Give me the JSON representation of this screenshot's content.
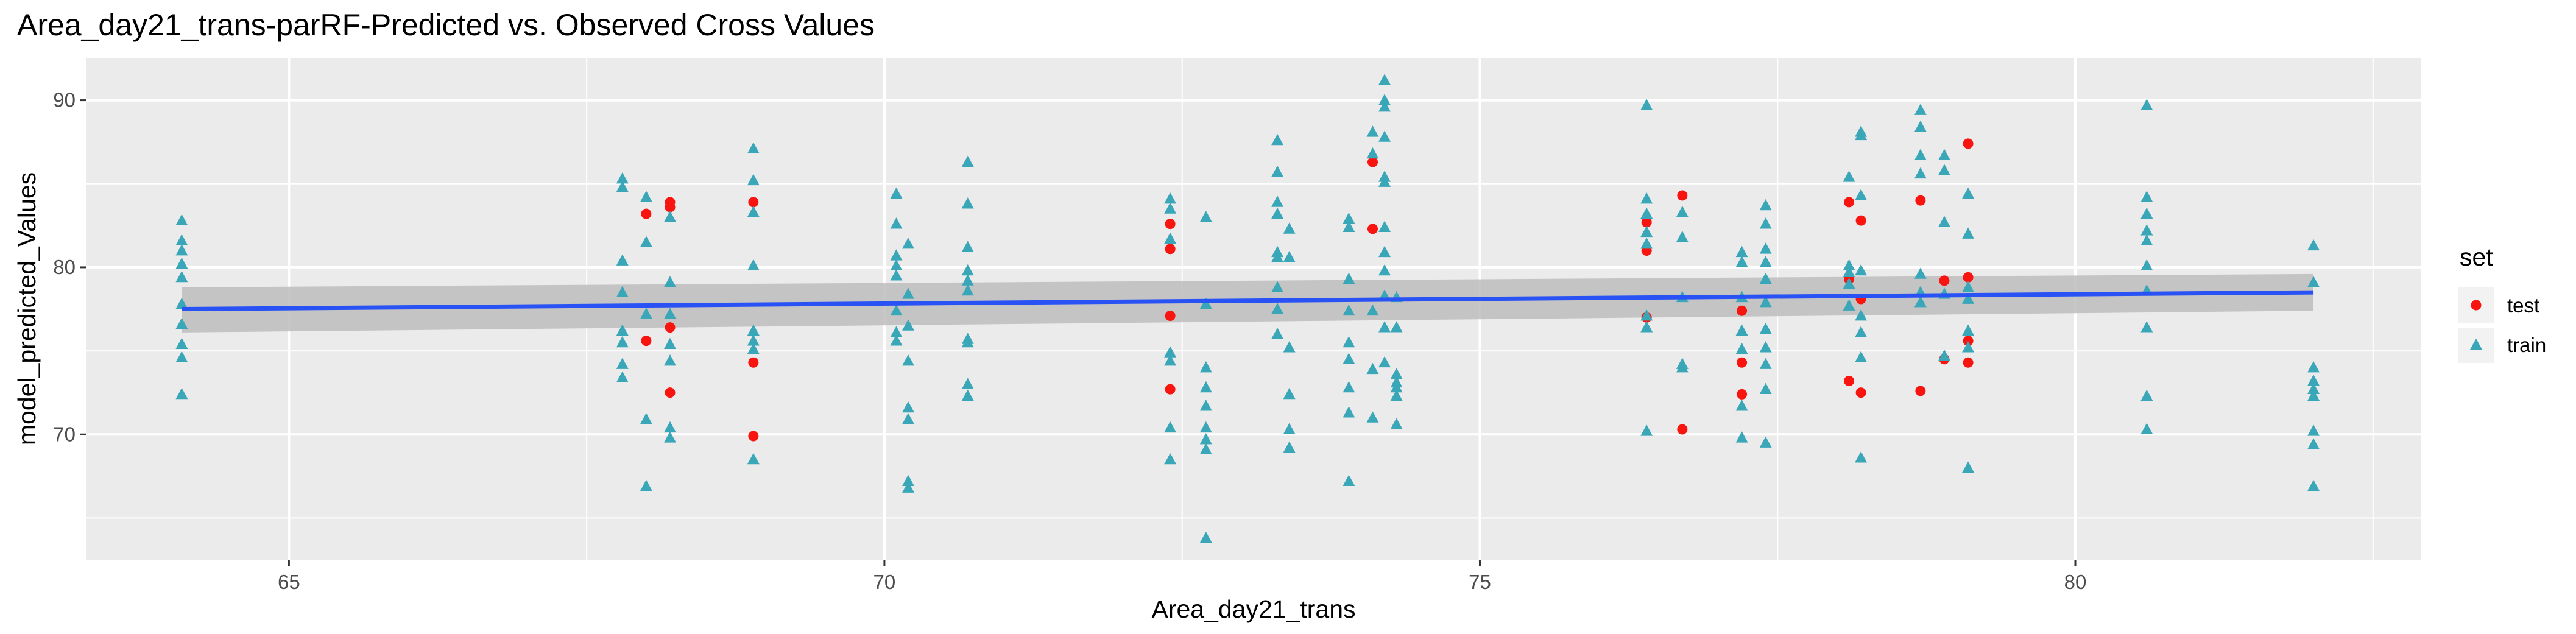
{
  "chart_data": {
    "type": "scatter",
    "title": "Area_day21_trans-parRF-Predicted vs. Observed Cross Values",
    "xlabel": "Area_day21_trans",
    "ylabel": "model_predicted_Values",
    "xlim": [
      63.3,
      82.9
    ],
    "ylim": [
      62.5,
      92.5
    ],
    "x_ticks": [
      65,
      70,
      75,
      80
    ],
    "y_ticks": [
      70,
      80,
      90
    ],
    "grid": true,
    "legend": {
      "title": "set",
      "placement": "right",
      "entries": [
        "test",
        "train"
      ]
    },
    "colors": {
      "test": "#F8150F",
      "train": "#3AA7B9",
      "fit_line": "#2952F5",
      "band": "#BDBDBD",
      "panel": "#EBEBEB"
    },
    "series": [
      {
        "name": "test",
        "marker": "circle",
        "points": [
          [
            68.0,
            75.6
          ],
          [
            68.0,
            83.2
          ],
          [
            68.2,
            76.4
          ],
          [
            68.2,
            83.6
          ],
          [
            68.2,
            83.9
          ],
          [
            68.2,
            72.5
          ],
          [
            68.9,
            83.9
          ],
          [
            68.9,
            74.3
          ],
          [
            68.9,
            69.9
          ],
          [
            72.4,
            82.6
          ],
          [
            72.4,
            81.1
          ],
          [
            72.4,
            77.1
          ],
          [
            72.4,
            72.7
          ],
          [
            74.1,
            86.3
          ],
          [
            74.1,
            82.3
          ],
          [
            76.4,
            82.7
          ],
          [
            76.4,
            81.0
          ],
          [
            76.4,
            77.0
          ],
          [
            76.7,
            84.3
          ],
          [
            76.7,
            70.3
          ],
          [
            77.2,
            77.4
          ],
          [
            77.2,
            74.3
          ],
          [
            77.2,
            72.4
          ],
          [
            78.1,
            83.9
          ],
          [
            78.2,
            82.8
          ],
          [
            78.1,
            79.3
          ],
          [
            78.2,
            78.1
          ],
          [
            78.1,
            73.2
          ],
          [
            78.2,
            72.5
          ],
          [
            78.7,
            84.0
          ],
          [
            78.7,
            72.6
          ],
          [
            78.9,
            79.2
          ],
          [
            78.9,
            74.5
          ],
          [
            79.1,
            87.4
          ],
          [
            79.1,
            79.4
          ],
          [
            79.1,
            75.6
          ],
          [
            79.1,
            74.3
          ]
        ]
      },
      {
        "name": "train",
        "marker": "triangle",
        "points": [
          [
            64.1,
            82.8
          ],
          [
            64.1,
            81.6
          ],
          [
            64.1,
            81.0
          ],
          [
            64.1,
            80.2
          ],
          [
            64.1,
            79.4
          ],
          [
            64.1,
            77.8
          ],
          [
            64.1,
            76.6
          ],
          [
            64.1,
            75.4
          ],
          [
            64.1,
            74.6
          ],
          [
            64.1,
            72.4
          ],
          [
            67.8,
            85.3
          ],
          [
            67.8,
            84.8
          ],
          [
            67.8,
            80.4
          ],
          [
            67.8,
            78.5
          ],
          [
            67.8,
            76.2
          ],
          [
            67.8,
            75.5
          ],
          [
            67.8,
            74.2
          ],
          [
            67.8,
            73.4
          ],
          [
            68.0,
            84.2
          ],
          [
            68.0,
            81.5
          ],
          [
            68.0,
            77.2
          ],
          [
            68.0,
            70.9
          ],
          [
            68.0,
            66.9
          ],
          [
            68.2,
            83.0
          ],
          [
            68.2,
            79.1
          ],
          [
            68.2,
            77.2
          ],
          [
            68.2,
            75.4
          ],
          [
            68.2,
            74.4
          ],
          [
            68.2,
            70.4
          ],
          [
            68.2,
            69.8
          ],
          [
            68.9,
            87.1
          ],
          [
            68.9,
            85.2
          ],
          [
            68.9,
            83.3
          ],
          [
            68.9,
            80.1
          ],
          [
            68.9,
            76.2
          ],
          [
            68.9,
            75.6
          ],
          [
            68.9,
            75.1
          ],
          [
            68.9,
            68.5
          ],
          [
            70.1,
            84.4
          ],
          [
            70.1,
            82.6
          ],
          [
            70.1,
            80.7
          ],
          [
            70.1,
            80.1
          ],
          [
            70.1,
            79.5
          ],
          [
            70.1,
            77.4
          ],
          [
            70.1,
            76.1
          ],
          [
            70.1,
            75.6
          ],
          [
            70.2,
            81.4
          ],
          [
            70.2,
            78.4
          ],
          [
            70.2,
            76.5
          ],
          [
            70.2,
            74.4
          ],
          [
            70.2,
            71.6
          ],
          [
            70.2,
            70.9
          ],
          [
            70.2,
            67.2
          ],
          [
            70.2,
            66.8
          ],
          [
            70.7,
            86.3
          ],
          [
            70.7,
            83.8
          ],
          [
            70.7,
            81.2
          ],
          [
            70.7,
            79.8
          ],
          [
            70.7,
            79.2
          ],
          [
            70.7,
            78.6
          ],
          [
            70.7,
            75.7
          ],
          [
            70.7,
            75.5
          ],
          [
            70.7,
            73.0
          ],
          [
            70.7,
            72.3
          ],
          [
            72.4,
            84.1
          ],
          [
            72.4,
            83.5
          ],
          [
            72.4,
            81.7
          ],
          [
            72.4,
            74.9
          ],
          [
            72.4,
            74.4
          ],
          [
            72.4,
            70.4
          ],
          [
            72.4,
            68.5
          ],
          [
            72.7,
            83.0
          ],
          [
            72.7,
            77.8
          ],
          [
            72.7,
            74.0
          ],
          [
            72.7,
            72.8
          ],
          [
            72.7,
            71.7
          ],
          [
            72.7,
            70.4
          ],
          [
            72.7,
            69.7
          ],
          [
            72.7,
            69.1
          ],
          [
            72.7,
            63.8
          ],
          [
            73.3,
            87.6
          ],
          [
            73.3,
            85.7
          ],
          [
            73.3,
            83.9
          ],
          [
            73.3,
            83.2
          ],
          [
            73.3,
            80.9
          ],
          [
            73.3,
            80.6
          ],
          [
            73.3,
            78.8
          ],
          [
            73.3,
            77.5
          ],
          [
            73.3,
            76.0
          ],
          [
            73.4,
            82.3
          ],
          [
            73.4,
            80.6
          ],
          [
            73.4,
            75.2
          ],
          [
            73.4,
            72.4
          ],
          [
            73.4,
            70.3
          ],
          [
            73.4,
            69.2
          ],
          [
            73.9,
            82.9
          ],
          [
            73.9,
            82.4
          ],
          [
            73.9,
            79.3
          ],
          [
            73.9,
            77.4
          ],
          [
            73.9,
            75.5
          ],
          [
            73.9,
            74.5
          ],
          [
            73.9,
            72.8
          ],
          [
            73.9,
            71.3
          ],
          [
            73.9,
            67.2
          ],
          [
            74.1,
            88.1
          ],
          [
            74.1,
            86.8
          ],
          [
            74.1,
            77.4
          ],
          [
            74.1,
            73.9
          ],
          [
            74.1,
            71.0
          ],
          [
            74.2,
            91.2
          ],
          [
            74.2,
            90.0
          ],
          [
            74.2,
            89.6
          ],
          [
            74.2,
            87.8
          ],
          [
            74.2,
            85.4
          ],
          [
            74.2,
            85.1
          ],
          [
            74.2,
            82.4
          ],
          [
            74.2,
            80.9
          ],
          [
            74.2,
            79.8
          ],
          [
            74.2,
            78.3
          ],
          [
            74.2,
            76.4
          ],
          [
            74.2,
            74.3
          ],
          [
            74.3,
            78.2
          ],
          [
            74.3,
            76.4
          ],
          [
            74.3,
            73.6
          ],
          [
            74.3,
            73.1
          ],
          [
            74.3,
            72.8
          ],
          [
            74.3,
            72.3
          ],
          [
            74.3,
            70.6
          ],
          [
            76.4,
            89.7
          ],
          [
            76.4,
            84.1
          ],
          [
            76.4,
            83.2
          ],
          [
            76.4,
            82.1
          ],
          [
            76.4,
            81.4
          ],
          [
            76.4,
            77.1
          ],
          [
            76.4,
            76.4
          ],
          [
            76.4,
            70.2
          ],
          [
            76.7,
            83.3
          ],
          [
            76.7,
            81.8
          ],
          [
            76.7,
            78.2
          ],
          [
            76.7,
            74.2
          ],
          [
            76.7,
            74.0
          ],
          [
            77.2,
            80.9
          ],
          [
            77.2,
            80.3
          ],
          [
            77.2,
            78.2
          ],
          [
            77.2,
            76.2
          ],
          [
            77.2,
            75.1
          ],
          [
            77.2,
            71.7
          ],
          [
            77.2,
            69.8
          ],
          [
            77.4,
            83.7
          ],
          [
            77.4,
            82.6
          ],
          [
            77.4,
            81.1
          ],
          [
            77.4,
            80.3
          ],
          [
            77.4,
            79.3
          ],
          [
            77.4,
            77.9
          ],
          [
            77.4,
            76.3
          ],
          [
            77.4,
            75.2
          ],
          [
            77.4,
            74.2
          ],
          [
            77.4,
            72.7
          ],
          [
            77.4,
            69.5
          ],
          [
            78.1,
            85.4
          ],
          [
            78.1,
            80.1
          ],
          [
            78.1,
            79.7
          ],
          [
            78.1,
            79.0
          ],
          [
            78.1,
            77.7
          ],
          [
            78.2,
            88.1
          ],
          [
            78.2,
            87.9
          ],
          [
            78.2,
            84.3
          ],
          [
            78.2,
            79.8
          ],
          [
            78.2,
            77.1
          ],
          [
            78.2,
            76.1
          ],
          [
            78.2,
            74.6
          ],
          [
            78.2,
            68.6
          ],
          [
            78.7,
            89.4
          ],
          [
            78.7,
            88.4
          ],
          [
            78.7,
            86.7
          ],
          [
            78.7,
            85.6
          ],
          [
            78.7,
            79.6
          ],
          [
            78.7,
            78.5
          ],
          [
            78.7,
            77.9
          ],
          [
            78.9,
            86.7
          ],
          [
            78.9,
            85.8
          ],
          [
            78.9,
            82.7
          ],
          [
            78.9,
            78.4
          ],
          [
            78.9,
            74.7
          ],
          [
            79.1,
            84.4
          ],
          [
            79.1,
            82.0
          ],
          [
            79.1,
            78.8
          ],
          [
            79.1,
            78.1
          ],
          [
            79.1,
            76.2
          ],
          [
            79.1,
            75.2
          ],
          [
            79.1,
            68.0
          ],
          [
            80.6,
            89.7
          ],
          [
            80.6,
            84.2
          ],
          [
            80.6,
            83.2
          ],
          [
            80.6,
            82.2
          ],
          [
            80.6,
            81.6
          ],
          [
            80.6,
            80.1
          ],
          [
            80.6,
            78.6
          ],
          [
            80.6,
            76.4
          ],
          [
            80.6,
            72.3
          ],
          [
            80.6,
            70.3
          ],
          [
            82.0,
            81.3
          ],
          [
            82.0,
            79.1
          ],
          [
            82.0,
            74.0
          ],
          [
            82.0,
            73.2
          ],
          [
            82.0,
            72.7
          ],
          [
            82.0,
            72.3
          ],
          [
            82.0,
            70.2
          ],
          [
            82.0,
            69.4
          ],
          [
            82.0,
            66.9
          ]
        ]
      }
    ],
    "fit": {
      "x": [
        64.1,
        82.0
      ],
      "y": [
        77.5,
        78.5
      ],
      "se_upper": [
        78.8,
        79.6
      ],
      "se_lower": [
        76.1,
        77.4
      ]
    }
  }
}
